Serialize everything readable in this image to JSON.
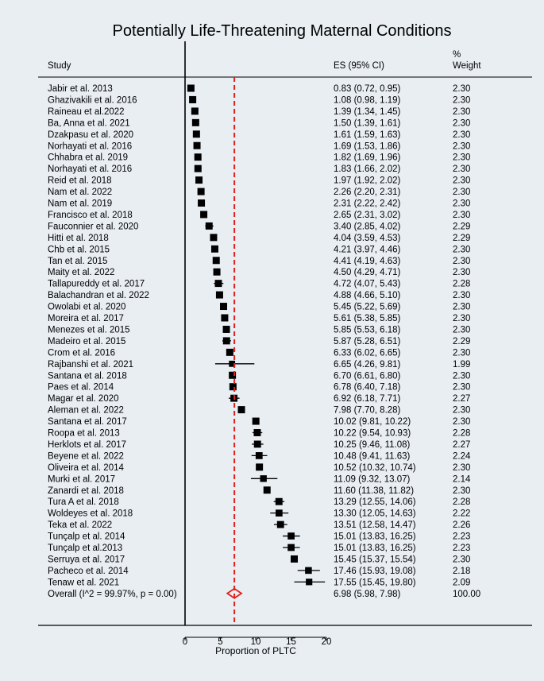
{
  "chart_data": {
    "type": "forest",
    "title": "Potentially Life-Threatening Maternal Conditions",
    "xlabel": "Proportion of PLTC",
    "xlim": [
      0,
      20
    ],
    "xticks": [
      "0",
      "5",
      "10",
      "15",
      "20"
    ],
    "headers": {
      "study": "Study",
      "es": "ES (95% CI)",
      "weight_line1": "%",
      "weight_line2": "Weight"
    },
    "null_line": 0,
    "overall_line": 6.98,
    "studies": [
      {
        "label": "Jabir et al. 2013",
        "es": 0.83,
        "lo": 0.72,
        "hi": 0.95,
        "es_text": "0.83 (0.72, 0.95)",
        "weight": "2.30"
      },
      {
        "label": "Ghazivakili et al. 2016",
        "es": 1.08,
        "lo": 0.98,
        "hi": 1.19,
        "es_text": "1.08 (0.98, 1.19)",
        "weight": "2.30"
      },
      {
        "label": "Raineau et al.2022",
        "es": 1.39,
        "lo": 1.34,
        "hi": 1.45,
        "es_text": "1.39 (1.34, 1.45)",
        "weight": "2.30"
      },
      {
        "label": "Ba, Anna et al. 2021",
        "es": 1.5,
        "lo": 1.39,
        "hi": 1.61,
        "es_text": "1.50 (1.39, 1.61)",
        "weight": "2.30"
      },
      {
        "label": "Dzakpasu et al. 2020",
        "es": 1.61,
        "lo": 1.59,
        "hi": 1.63,
        "es_text": "1.61 (1.59, 1.63)",
        "weight": "2.30"
      },
      {
        "label": "Norhayati et al. 2016",
        "es": 1.69,
        "lo": 1.53,
        "hi": 1.86,
        "es_text": "1.69 (1.53, 1.86)",
        "weight": "2.30"
      },
      {
        "label": "Chhabra et al. 2019",
        "es": 1.82,
        "lo": 1.69,
        "hi": 1.96,
        "es_text": "1.82 (1.69, 1.96)",
        "weight": "2.30"
      },
      {
        "label": "Norhayati et al. 2016",
        "es": 1.83,
        "lo": 1.66,
        "hi": 2.02,
        "es_text": "1.83 (1.66, 2.02)",
        "weight": "2.30"
      },
      {
        "label": "Reid et al. 2018",
        "es": 1.97,
        "lo": 1.92,
        "hi": 2.02,
        "es_text": "1.97 (1.92, 2.02)",
        "weight": "2.30"
      },
      {
        "label": "Nam et al. 2022",
        "es": 2.26,
        "lo": 2.2,
        "hi": 2.31,
        "es_text": "2.26 (2.20, 2.31)",
        "weight": "2.30"
      },
      {
        "label": "Nam et al. 2019",
        "es": 2.31,
        "lo": 2.22,
        "hi": 2.42,
        "es_text": "2.31 (2.22, 2.42)",
        "weight": "2.30"
      },
      {
        "label": "Francisco et al. 2018",
        "es": 2.65,
        "lo": 2.31,
        "hi": 3.02,
        "es_text": "2.65 (2.31, 3.02)",
        "weight": "2.30"
      },
      {
        "label": "Fauconnier et al. 2020",
        "es": 3.4,
        "lo": 2.85,
        "hi": 4.02,
        "es_text": "3.40 (2.85, 4.02)",
        "weight": "2.29"
      },
      {
        "label": "Hitti et al. 2018",
        "es": 4.04,
        "lo": 3.59,
        "hi": 4.53,
        "es_text": "4.04 (3.59, 4.53)",
        "weight": "2.29"
      },
      {
        "label": "Chb et al. 2015",
        "es": 4.21,
        "lo": 3.97,
        "hi": 4.46,
        "es_text": "4.21 (3.97, 4.46)",
        "weight": "2.30"
      },
      {
        "label": "Tan et al. 2015",
        "es": 4.41,
        "lo": 4.19,
        "hi": 4.63,
        "es_text": "4.41 (4.19, 4.63)",
        "weight": "2.30"
      },
      {
        "label": "Maity et al. 2022",
        "es": 4.5,
        "lo": 4.29,
        "hi": 4.71,
        "es_text": "4.50 (4.29, 4.71)",
        "weight": "2.30"
      },
      {
        "label": "Tallapureddy et al. 2017",
        "es": 4.72,
        "lo": 4.07,
        "hi": 5.43,
        "es_text": "4.72 (4.07, 5.43)",
        "weight": "2.28"
      },
      {
        "label": "Balachandran et al. 2022",
        "es": 4.88,
        "lo": 4.66,
        "hi": 5.1,
        "es_text": "4.88 (4.66, 5.10)",
        "weight": "2.30"
      },
      {
        "label": "Owolabi et al. 2020",
        "es": 5.45,
        "lo": 5.22,
        "hi": 5.69,
        "es_text": "5.45 (5.22, 5.69)",
        "weight": "2.30"
      },
      {
        "label": "Moreira et al. 2017",
        "es": 5.61,
        "lo": 5.38,
        "hi": 5.85,
        "es_text": "5.61 (5.38, 5.85)",
        "weight": "2.30"
      },
      {
        "label": "Menezes et al. 2015",
        "es": 5.85,
        "lo": 5.53,
        "hi": 6.18,
        "es_text": "5.85 (5.53, 6.18)",
        "weight": "2.30"
      },
      {
        "label": "Madeiro et al. 2015",
        "es": 5.87,
        "lo": 5.28,
        "hi": 6.51,
        "es_text": "5.87 (5.28, 6.51)",
        "weight": "2.29"
      },
      {
        "label": "Crom et al. 2016",
        "es": 6.33,
        "lo": 6.02,
        "hi": 6.65,
        "es_text": "6.33 (6.02, 6.65)",
        "weight": "2.30"
      },
      {
        "label": "Rajbanshi et al. 2021",
        "es": 6.65,
        "lo": 4.26,
        "hi": 9.81,
        "es_text": "6.65 (4.26, 9.81)",
        "weight": "1.99"
      },
      {
        "label": "Santana et al. 2018",
        "es": 6.7,
        "lo": 6.61,
        "hi": 6.8,
        "es_text": "6.70 (6.61, 6.80)",
        "weight": "2.30"
      },
      {
        "label": "Paes et al. 2014",
        "es": 6.78,
        "lo": 6.4,
        "hi": 7.18,
        "es_text": "6.78 (6.40, 7.18)",
        "weight": "2.30"
      },
      {
        "label": "Magar et al. 2020",
        "es": 6.92,
        "lo": 6.18,
        "hi": 7.71,
        "es_text": "6.92 (6.18, 7.71)",
        "weight": "2.27"
      },
      {
        "label": "Aleman et al. 2022",
        "es": 7.98,
        "lo": 7.7,
        "hi": 8.28,
        "es_text": "7.98 (7.70, 8.28)",
        "weight": "2.30"
      },
      {
        "label": "Santana et al. 2017",
        "es": 10.02,
        "lo": 9.81,
        "hi": 10.22,
        "es_text": "10.02 (9.81, 10.22)",
        "weight": "2.30"
      },
      {
        "label": "Roopa et al. 2013",
        "es": 10.22,
        "lo": 9.54,
        "hi": 10.93,
        "es_text": "10.22 (9.54, 10.93)",
        "weight": "2.28"
      },
      {
        "label": "Herklots et al. 2017",
        "es": 10.25,
        "lo": 9.46,
        "hi": 11.08,
        "es_text": "10.25 (9.46, 11.08)",
        "weight": "2.27"
      },
      {
        "label": "Beyene et al. 2022",
        "es": 10.48,
        "lo": 9.41,
        "hi": 11.63,
        "es_text": "10.48 (9.41, 11.63)",
        "weight": "2.24"
      },
      {
        "label": "Oliveira et al. 2014",
        "es": 10.52,
        "lo": 10.32,
        "hi": 10.74,
        "es_text": "10.52 (10.32, 10.74)",
        "weight": "2.30"
      },
      {
        "label": "Murki et al. 2017",
        "es": 11.09,
        "lo": 9.32,
        "hi": 13.07,
        "es_text": "11.09 (9.32, 13.07)",
        "weight": "2.14"
      },
      {
        "label": "Zanardi et al. 2018",
        "es": 11.6,
        "lo": 11.38,
        "hi": 11.82,
        "es_text": "11.60 (11.38, 11.82)",
        "weight": "2.30"
      },
      {
        "label": "Tura A et al. 2018",
        "es": 13.29,
        "lo": 12.55,
        "hi": 14.06,
        "es_text": "13.29 (12.55, 14.06)",
        "weight": "2.28"
      },
      {
        "label": "Woldeyes et al. 2018",
        "es": 13.3,
        "lo": 12.05,
        "hi": 14.63,
        "es_text": "13.30 (12.05, 14.63)",
        "weight": "2.22"
      },
      {
        "label": "Teka et al. 2022",
        "es": 13.51,
        "lo": 12.58,
        "hi": 14.47,
        "es_text": "13.51 (12.58, 14.47)",
        "weight": "2.26"
      },
      {
        "label": "Tunçalp et al. 2014",
        "es": 15.01,
        "lo": 13.83,
        "hi": 16.25,
        "es_text": "15.01 (13.83, 16.25)",
        "weight": "2.23"
      },
      {
        "label": "Tunçalp et al.2013",
        "es": 15.01,
        "lo": 13.83,
        "hi": 16.25,
        "es_text": "15.01 (13.83, 16.25)",
        "weight": "2.23"
      },
      {
        "label": "Serruya et al. 2017",
        "es": 15.45,
        "lo": 15.37,
        "hi": 15.54,
        "es_text": "15.45 (15.37, 15.54)",
        "weight": "2.30"
      },
      {
        "label": "Pacheco et al. 2014",
        "es": 17.46,
        "lo": 15.93,
        "hi": 19.08,
        "es_text": "17.46 (15.93, 19.08)",
        "weight": "2.18"
      },
      {
        "label": "Tenaw et al. 2021",
        "es": 17.55,
        "lo": 15.45,
        "hi": 19.8,
        "es_text": "17.55 (15.45, 19.80)",
        "weight": "2.09"
      }
    ],
    "overall": {
      "label": "Overall  (I^2 = 99.97%, p = 0.00)",
      "es": 6.98,
      "lo": 5.98,
      "hi": 7.98,
      "es_text": "6.98 (5.98, 7.98)",
      "weight": "100.00"
    },
    "colors": {
      "background": "#e8eef2",
      "marker": "#000000",
      "overall_line": "#e0201a",
      "diamond": "#e0201a"
    }
  }
}
